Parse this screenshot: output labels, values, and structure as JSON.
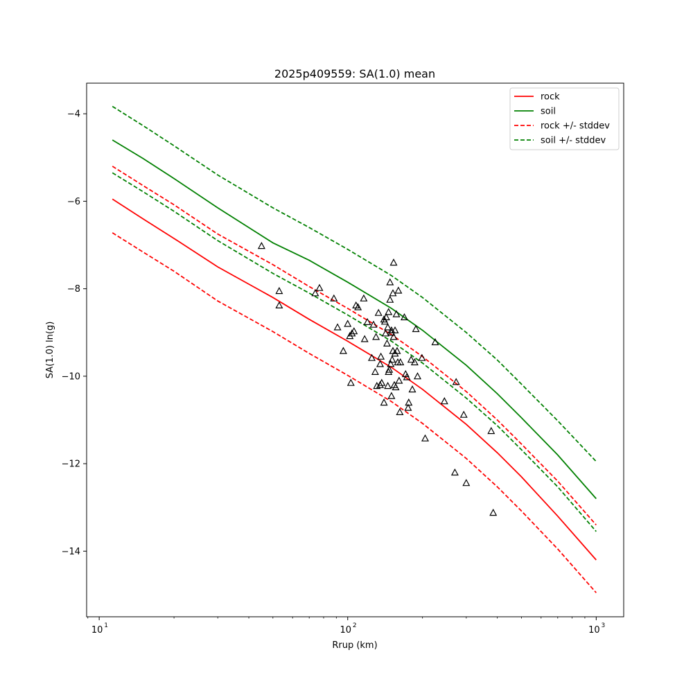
{
  "chart_data": {
    "type": "line",
    "title": "2025p409559: SA(1.0) mean",
    "xlabel": "Rrup (km)",
    "ylabel": "SA(1.0) ln(g)",
    "xscale": "log",
    "xlim": [
      8.9,
      1290
    ],
    "ylim": [
      -15.5,
      -3.3
    ],
    "xticks": [
      {
        "value": 10,
        "base": "10",
        "exp": "1"
      },
      {
        "value": 100,
        "base": "10",
        "exp": "2"
      },
      {
        "value": 1000,
        "base": "10",
        "exp": "3"
      }
    ],
    "yticks": [
      {
        "value": -4,
        "label": "−4"
      },
      {
        "value": -6,
        "label": "−6"
      },
      {
        "value": -8,
        "label": "−8"
      },
      {
        "value": -10,
        "label": "−10"
      },
      {
        "value": -12,
        "label": "−12"
      },
      {
        "value": -14,
        "label": "−14"
      }
    ],
    "grid": false,
    "legend_position": "top-right",
    "x": [
      11.3,
      15,
      20,
      30,
      50,
      70,
      100,
      150,
      200,
      300,
      400,
      500,
      700,
      1000
    ],
    "series": [
      {
        "name": "rock",
        "color": "#ff0000",
        "dash": "solid",
        "values": [
          -5.95,
          -6.4,
          -6.85,
          -7.5,
          -8.2,
          -8.7,
          -9.2,
          -9.8,
          -10.3,
          -11.1,
          -11.75,
          -12.3,
          -13.2,
          -14.2
        ]
      },
      {
        "name": "soil",
        "color": "#008000",
        "dash": "solid",
        "values": [
          -4.6,
          -5.02,
          -5.48,
          -6.15,
          -6.95,
          -7.35,
          -7.85,
          -8.45,
          -8.95,
          -9.75,
          -10.4,
          -10.95,
          -11.8,
          -12.8
        ]
      },
      {
        "name": "rock +/- stddev",
        "color": "#ff0000",
        "dash": "dashed",
        "values": [
          -5.2,
          -5.64,
          -6.08,
          -6.75,
          -7.45,
          -7.95,
          -8.45,
          -9.05,
          -9.55,
          -10.35,
          -11.0,
          -11.55,
          -12.4,
          -13.4
        ]
      },
      {
        "name": null,
        "color": "#ff0000",
        "dash": "dashed",
        "values": [
          -6.72,
          -7.16,
          -7.6,
          -8.28,
          -8.98,
          -9.48,
          -9.98,
          -10.58,
          -11.08,
          -11.88,
          -12.53,
          -13.08,
          -13.95,
          -14.95
        ]
      },
      {
        "name": "soil +/- stddev",
        "color": "#008000",
        "dash": "dashed",
        "values": [
          -3.83,
          -4.27,
          -4.73,
          -5.4,
          -6.15,
          -6.6,
          -7.1,
          -7.7,
          -8.2,
          -9.0,
          -9.63,
          -10.18,
          -11.02,
          -11.95
        ]
      },
      {
        "name": null,
        "color": "#008000",
        "dash": "dashed",
        "values": [
          -5.35,
          -5.78,
          -6.23,
          -6.9,
          -7.65,
          -8.1,
          -8.6,
          -9.2,
          -9.7,
          -10.5,
          -11.13,
          -11.68,
          -12.53,
          -13.55
        ]
      }
    ],
    "observations": {
      "marker": "triangle-open",
      "color": "#000000",
      "points": [
        [
          45,
          -7.02
        ],
        [
          53,
          -8.05
        ],
        [
          53,
          -8.38
        ],
        [
          74,
          -8.1
        ],
        [
          77,
          -7.98
        ],
        [
          88,
          -8.22
        ],
        [
          91,
          -8.88
        ],
        [
          96,
          -9.42
        ],
        [
          100,
          -8.8
        ],
        [
          102,
          -9.08
        ],
        [
          103,
          -10.15
        ],
        [
          104,
          -9.02
        ],
        [
          106,
          -8.97
        ],
        [
          108,
          -8.38
        ],
        [
          110,
          -8.42
        ],
        [
          116,
          -8.22
        ],
        [
          117,
          -9.15
        ],
        [
          120,
          -8.76
        ],
        [
          125,
          -9.58
        ],
        [
          127,
          -8.82
        ],
        [
          129,
          -9.9
        ],
        [
          130,
          -9.1
        ],
        [
          131,
          -10.22
        ],
        [
          133,
          -8.55
        ],
        [
          135,
          -9.72
        ],
        [
          135,
          -10.2
        ],
        [
          136,
          -9.55
        ],
        [
          137,
          -10.15
        ],
        [
          140,
          -10.6
        ],
        [
          140,
          -8.7
        ],
        [
          141,
          -8.75
        ],
        [
          142,
          -9.02
        ],
        [
          143,
          -8.65
        ],
        [
          144,
          -9.25
        ],
        [
          145,
          -10.22
        ],
        [
          145,
          -8.88
        ],
        [
          146,
          -9.9
        ],
        [
          146,
          -8.53
        ],
        [
          147,
          -9.85
        ],
        [
          148,
          -8.25
        ],
        [
          148,
          -7.85
        ],
        [
          149,
          -9.72
        ],
        [
          150,
          -8.95
        ],
        [
          150,
          -10.45
        ],
        [
          150,
          -9.0
        ],
        [
          151,
          -9.62
        ],
        [
          152,
          -8.1
        ],
        [
          152,
          -9.42
        ],
        [
          153,
          -7.4
        ],
        [
          153,
          -9.1
        ],
        [
          154,
          -10.2
        ],
        [
          155,
          -9.48
        ],
        [
          155,
          -8.95
        ],
        [
          156,
          -10.25
        ],
        [
          157,
          -8.58
        ],
        [
          158,
          -9.42
        ],
        [
          159,
          -9.68
        ],
        [
          160,
          -8.04
        ],
        [
          161,
          -10.1
        ],
        [
          162,
          -10.82
        ],
        [
          163,
          -9.68
        ],
        [
          169,
          -8.65
        ],
        [
          171,
          -9.95
        ],
        [
          173,
          -10.02
        ],
        [
          175,
          -10.72
        ],
        [
          176,
          -10.6
        ],
        [
          180,
          -9.62
        ],
        [
          182,
          -10.3
        ],
        [
          186,
          -9.68
        ],
        [
          188,
          -8.92
        ],
        [
          191,
          -10.0
        ],
        [
          199,
          -9.58
        ],
        [
          205,
          -11.42
        ],
        [
          225,
          -9.22
        ],
        [
          245,
          -10.57
        ],
        [
          270,
          -12.2
        ],
        [
          273,
          -10.13
        ],
        [
          293,
          -10.88
        ],
        [
          300,
          -12.44
        ],
        [
          378,
          -11.25
        ],
        [
          385,
          -13.12
        ]
      ]
    }
  }
}
